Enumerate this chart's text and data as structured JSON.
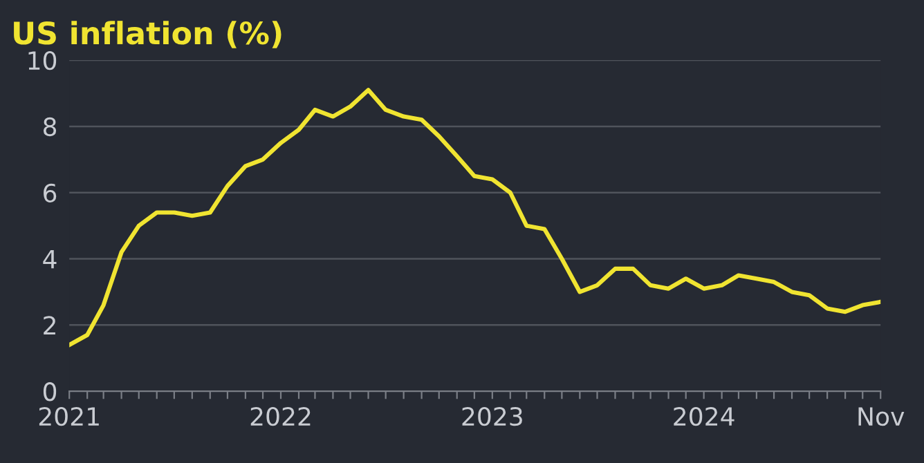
{
  "chart_data": {
    "type": "line",
    "title": "US inflation (%)",
    "x": [
      "2021-01",
      "2021-02",
      "2021-03",
      "2021-04",
      "2021-05",
      "2021-06",
      "2021-07",
      "2021-08",
      "2021-09",
      "2021-10",
      "2021-11",
      "2021-12",
      "2022-01",
      "2022-02",
      "2022-03",
      "2022-04",
      "2022-05",
      "2022-06",
      "2022-07",
      "2022-08",
      "2022-09",
      "2022-10",
      "2022-11",
      "2022-12",
      "2023-01",
      "2023-02",
      "2023-03",
      "2023-04",
      "2023-05",
      "2023-06",
      "2023-07",
      "2023-08",
      "2023-09",
      "2023-10",
      "2023-11",
      "2023-12",
      "2024-01",
      "2024-02",
      "2024-03",
      "2024-04",
      "2024-05",
      "2024-06",
      "2024-07",
      "2024-08",
      "2024-09",
      "2024-10",
      "2024-11"
    ],
    "series": [
      {
        "color": "#f0e431",
        "values": [
          1.4,
          1.7,
          2.6,
          4.2,
          5.0,
          5.4,
          5.4,
          5.3,
          5.4,
          6.2,
          6.8,
          7.0,
          7.5,
          7.9,
          8.5,
          8.3,
          8.6,
          9.1,
          8.5,
          8.3,
          8.2,
          7.7,
          7.1,
          6.5,
          6.4,
          6.0,
          5.0,
          4.9,
          4.0,
          3.0,
          3.2,
          3.7,
          3.7,
          3.2,
          3.1,
          3.4,
          3.1,
          3.2,
          3.5,
          3.4,
          3.3,
          3.0,
          2.9,
          2.5,
          2.4,
          2.6,
          2.7
        ]
      }
    ],
    "xlim": [
      "2021-01",
      "2024-11"
    ],
    "xticks": [
      {
        "value": "2021-01",
        "label": "2021"
      },
      {
        "value": "2021-02",
        "label": null
      },
      {
        "value": "2021-03",
        "label": null
      },
      {
        "value": "2021-04",
        "label": null
      },
      {
        "value": "2021-05",
        "label": null
      },
      {
        "value": "2021-06",
        "label": null
      },
      {
        "value": "2021-07",
        "label": null
      },
      {
        "value": "2021-08",
        "label": null
      },
      {
        "value": "2021-09",
        "label": null
      },
      {
        "value": "2021-10",
        "label": null
      },
      {
        "value": "2021-11",
        "label": null
      },
      {
        "value": "2021-12",
        "label": null
      },
      {
        "value": "2022-01",
        "label": "2022"
      },
      {
        "value": "2022-02",
        "label": null
      },
      {
        "value": "2022-03",
        "label": null
      },
      {
        "value": "2022-04",
        "label": null
      },
      {
        "value": "2022-05",
        "label": null
      },
      {
        "value": "2022-06",
        "label": null
      },
      {
        "value": "2022-07",
        "label": null
      },
      {
        "value": "2022-08",
        "label": null
      },
      {
        "value": "2022-09",
        "label": null
      },
      {
        "value": "2022-10",
        "label": null
      },
      {
        "value": "2022-11",
        "label": null
      },
      {
        "value": "2022-12",
        "label": null
      },
      {
        "value": "2023-01",
        "label": "2023"
      },
      {
        "value": "2023-02",
        "label": null
      },
      {
        "value": "2023-03",
        "label": null
      },
      {
        "value": "2023-04",
        "label": null
      },
      {
        "value": "2023-05",
        "label": null
      },
      {
        "value": "2023-06",
        "label": null
      },
      {
        "value": "2023-07",
        "label": null
      },
      {
        "value": "2023-08",
        "label": null
      },
      {
        "value": "2023-09",
        "label": null
      },
      {
        "value": "2023-10",
        "label": null
      },
      {
        "value": "2023-11",
        "label": null
      },
      {
        "value": "2023-12",
        "label": null
      },
      {
        "value": "2024-01",
        "label": "2024"
      },
      {
        "value": "2024-02",
        "label": null
      },
      {
        "value": "2024-03",
        "label": null
      },
      {
        "value": "2024-04",
        "label": null
      },
      {
        "value": "2024-05",
        "label": null
      },
      {
        "value": "2024-06",
        "label": null
      },
      {
        "value": "2024-07",
        "label": null
      },
      {
        "value": "2024-08",
        "label": null
      },
      {
        "value": "2024-09",
        "label": null
      },
      {
        "value": "2024-10",
        "label": null
      },
      {
        "value": "2024-11",
        "label": "Nov"
      }
    ],
    "ylim": [
      0,
      10
    ],
    "yticks": [
      0,
      2,
      4,
      6,
      8,
      10
    ],
    "grid": "y",
    "marker": "none",
    "line_style": "solid"
  }
}
